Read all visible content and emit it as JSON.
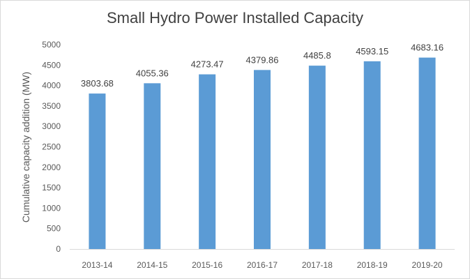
{
  "chart_data": {
    "type": "bar",
    "title": "Small Hydro Power Installed Capacity",
    "xlabel": "",
    "ylabel": "Cumulative capacity addition (MW)",
    "categories": [
      "2013-14",
      "2014-15",
      "2015-16",
      "2016-17",
      "2017-18",
      "2018-19",
      "2019-20"
    ],
    "values": [
      3803.68,
      4055.36,
      4273.47,
      4379.86,
      4485.8,
      4593.15,
      4683.16
    ],
    "data_labels": [
      "3803.68",
      "4055.36",
      "4273.47",
      "4379.86",
      "4485.8",
      "4593.15",
      "4683.16"
    ],
    "y_ticks": [
      0,
      500,
      1000,
      1500,
      2000,
      2500,
      3000,
      3500,
      4000,
      4500,
      5000
    ],
    "ylim": [
      0,
      5000
    ],
    "grid": false,
    "legend": "none",
    "bar_color": "#5b9bd5",
    "axis_color": "#d9d9d9"
  }
}
